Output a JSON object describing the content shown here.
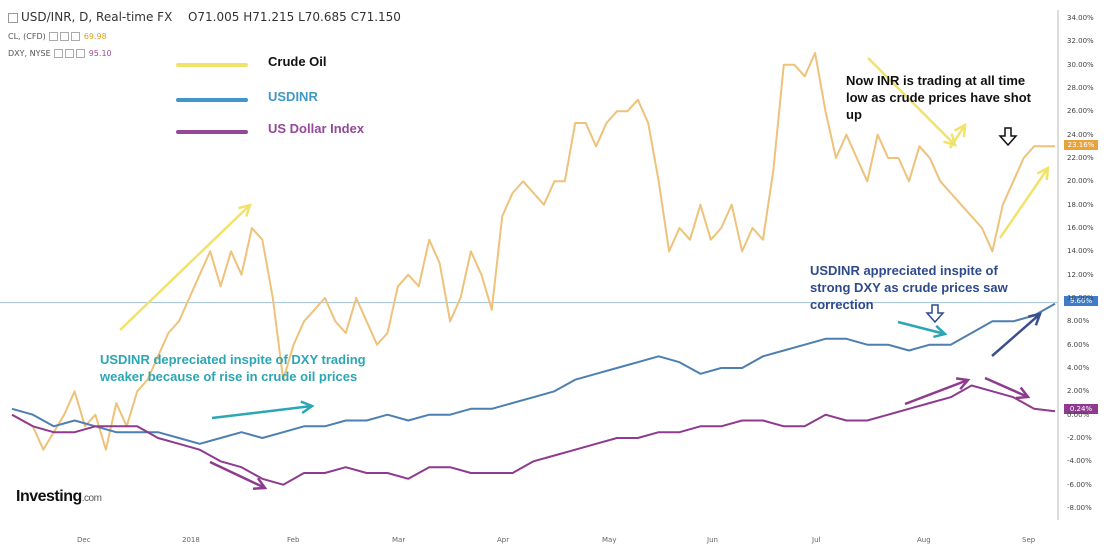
{
  "header": {
    "title": "USD/INR, D, Real-time FX",
    "ohlc": [
      "O71.005",
      "H71.215",
      "L70.685",
      "C71.150"
    ]
  },
  "sub_rows": [
    {
      "label": "CL, (CFD)",
      "value": "69.98",
      "color": "#e0a020"
    },
    {
      "label": "DXY, NYSE",
      "value": "95.10",
      "color": "#9b4d9b"
    }
  ],
  "legend": [
    {
      "label": "Crude Oil",
      "color": "#f1e36a",
      "text_color": "#111111"
    },
    {
      "label": "USDINR",
      "color": "#3f98c6",
      "text_color": "#3f98c6"
    },
    {
      "label": "US Dollar Index",
      "color": "#93489a",
      "text_color": "#93489a"
    }
  ],
  "annotations": {
    "inr_low": "Now INR is trading at all time low as crude prices have shot up",
    "depreciated": "USDINR depreciated inspite of DXY trading weaker because of rise in crude oil prices",
    "appreciated": "USDINR appreciated inspite of strong DXY as crude prices saw correction"
  },
  "logo": {
    "name": "Investing",
    "suffix": ".com"
  },
  "badges": [
    {
      "text": "23.16%",
      "color": "#e8a33c"
    },
    {
      "text": "9.60%",
      "color": "#3f7ec6"
    },
    {
      "text": "0.24%",
      "color": "#8e3a8e"
    }
  ],
  "chart_data": {
    "type": "line",
    "yticks": [
      "34.00%",
      "32.00%",
      "30.00%",
      "28.00%",
      "26.00%",
      "24.00%",
      "22.00%",
      "20.00%",
      "18.00%",
      "16.00%",
      "14.00%",
      "12.00%",
      "10.00%",
      "8.00%",
      "6.00%",
      "4.00%",
      "2.00%",
      "0.00%",
      "-2.00%",
      "-4.00%",
      "-6.00%",
      "-8.00%"
    ],
    "xticks": [
      "Dec",
      "2018",
      "Feb",
      "Mar",
      "Apr",
      "May",
      "Jun",
      "Jul",
      "Aug",
      "Sep"
    ],
    "ylim": [
      -8,
      34
    ],
    "xlim": [
      0,
      100
    ],
    "series": [
      {
        "name": "Crude Oil",
        "color": "#eec27a",
        "x": [
          0,
          2,
          3,
          5,
          6,
          7,
          8,
          9,
          10,
          11,
          12,
          13,
          14,
          15,
          16,
          17,
          18,
          19,
          20,
          21,
          22,
          23,
          24,
          25,
          26,
          27,
          28,
          29,
          30,
          31,
          32,
          33,
          34,
          35,
          36,
          37,
          38,
          39,
          40,
          41,
          42,
          43,
          44,
          45,
          46,
          47,
          48,
          49,
          50,
          51,
          52,
          53,
          54,
          55,
          56,
          57,
          58,
          59,
          60,
          61,
          62,
          63,
          64,
          65,
          66,
          67,
          68,
          69,
          70,
          71,
          72,
          73,
          74,
          75,
          76,
          77,
          78,
          79,
          80,
          81,
          82,
          83,
          84,
          85,
          86,
          87,
          88,
          89,
          90,
          91,
          92,
          93,
          94,
          95,
          96,
          97,
          98,
          99,
          100
        ],
        "y": [
          0,
          -1,
          -3,
          0,
          2,
          -1,
          0,
          -3,
          1,
          -1,
          2,
          3,
          5,
          7,
          8,
          10,
          12,
          14,
          11,
          14,
          12,
          16,
          15,
          10,
          3,
          6,
          8,
          9,
          10,
          8,
          7,
          10,
          8,
          6,
          7,
          11,
          12,
          11,
          15,
          13,
          8,
          10,
          14,
          12,
          9,
          17,
          19,
          20,
          19,
          18,
          20,
          20,
          25,
          25,
          23,
          25,
          26,
          26,
          27,
          25,
          20,
          14,
          16,
          15,
          18,
          15,
          16,
          18,
          14,
          16,
          15,
          21,
          30,
          30,
          29,
          31,
          26,
          22,
          24,
          22,
          20,
          24,
          22,
          22,
          20,
          23,
          22,
          20,
          19,
          18,
          17,
          16,
          14,
          18,
          20,
          22,
          23,
          23,
          23
        ]
      },
      {
        "name": "USDINR",
        "color": "#4d7fb0",
        "x": [
          0,
          2,
          4,
          6,
          8,
          10,
          12,
          14,
          16,
          18,
          20,
          22,
          24,
          26,
          28,
          30,
          32,
          34,
          36,
          38,
          40,
          42,
          44,
          46,
          48,
          50,
          52,
          54,
          56,
          58,
          60,
          62,
          64,
          66,
          68,
          70,
          72,
          74,
          76,
          78,
          80,
          82,
          84,
          86,
          88,
          90,
          92,
          94,
          96,
          98,
          100
        ],
        "y": [
          0.5,
          0,
          -1,
          -0.5,
          -1,
          -1.5,
          -1.5,
          -1.5,
          -2,
          -2.5,
          -2,
          -1.5,
          -2,
          -1.5,
          -1,
          -1,
          -0.5,
          -0.5,
          0,
          -0.5,
          0,
          0,
          0.5,
          0.5,
          1,
          1.5,
          2,
          3,
          3.5,
          4,
          4.5,
          5,
          4.5,
          3.5,
          4,
          4,
          5,
          5.5,
          6,
          6.5,
          6.5,
          6,
          6,
          5.5,
          6,
          6,
          7,
          8,
          8,
          8.5,
          9.5
        ]
      },
      {
        "name": "US Dollar Index",
        "color": "#8e3a8e",
        "x": [
          0,
          2,
          4,
          6,
          8,
          10,
          12,
          14,
          16,
          18,
          20,
          22,
          24,
          26,
          28,
          30,
          32,
          34,
          36,
          38,
          40,
          42,
          44,
          46,
          48,
          50,
          52,
          54,
          56,
          58,
          60,
          62,
          64,
          66,
          68,
          70,
          72,
          74,
          76,
          78,
          80,
          82,
          84,
          86,
          88,
          90,
          92,
          94,
          96,
          98,
          100
        ],
        "y": [
          0,
          -1,
          -1.5,
          -1.5,
          -1,
          -1,
          -1,
          -2,
          -2.5,
          -3,
          -4,
          -4.5,
          -5.5,
          -6,
          -5,
          -5,
          -4.5,
          -5,
          -5,
          -5.5,
          -4.5,
          -4.5,
          -5,
          -5,
          -5,
          -4,
          -3.5,
          -3,
          -2.5,
          -2,
          -2,
          -1.5,
          -1.5,
          -1,
          -1,
          -0.5,
          -0.5,
          -1,
          -1,
          0,
          -0.5,
          -0.5,
          0,
          0.5,
          1,
          1.5,
          2.5,
          2,
          1.5,
          0.5,
          0.3
        ]
      }
    ]
  }
}
